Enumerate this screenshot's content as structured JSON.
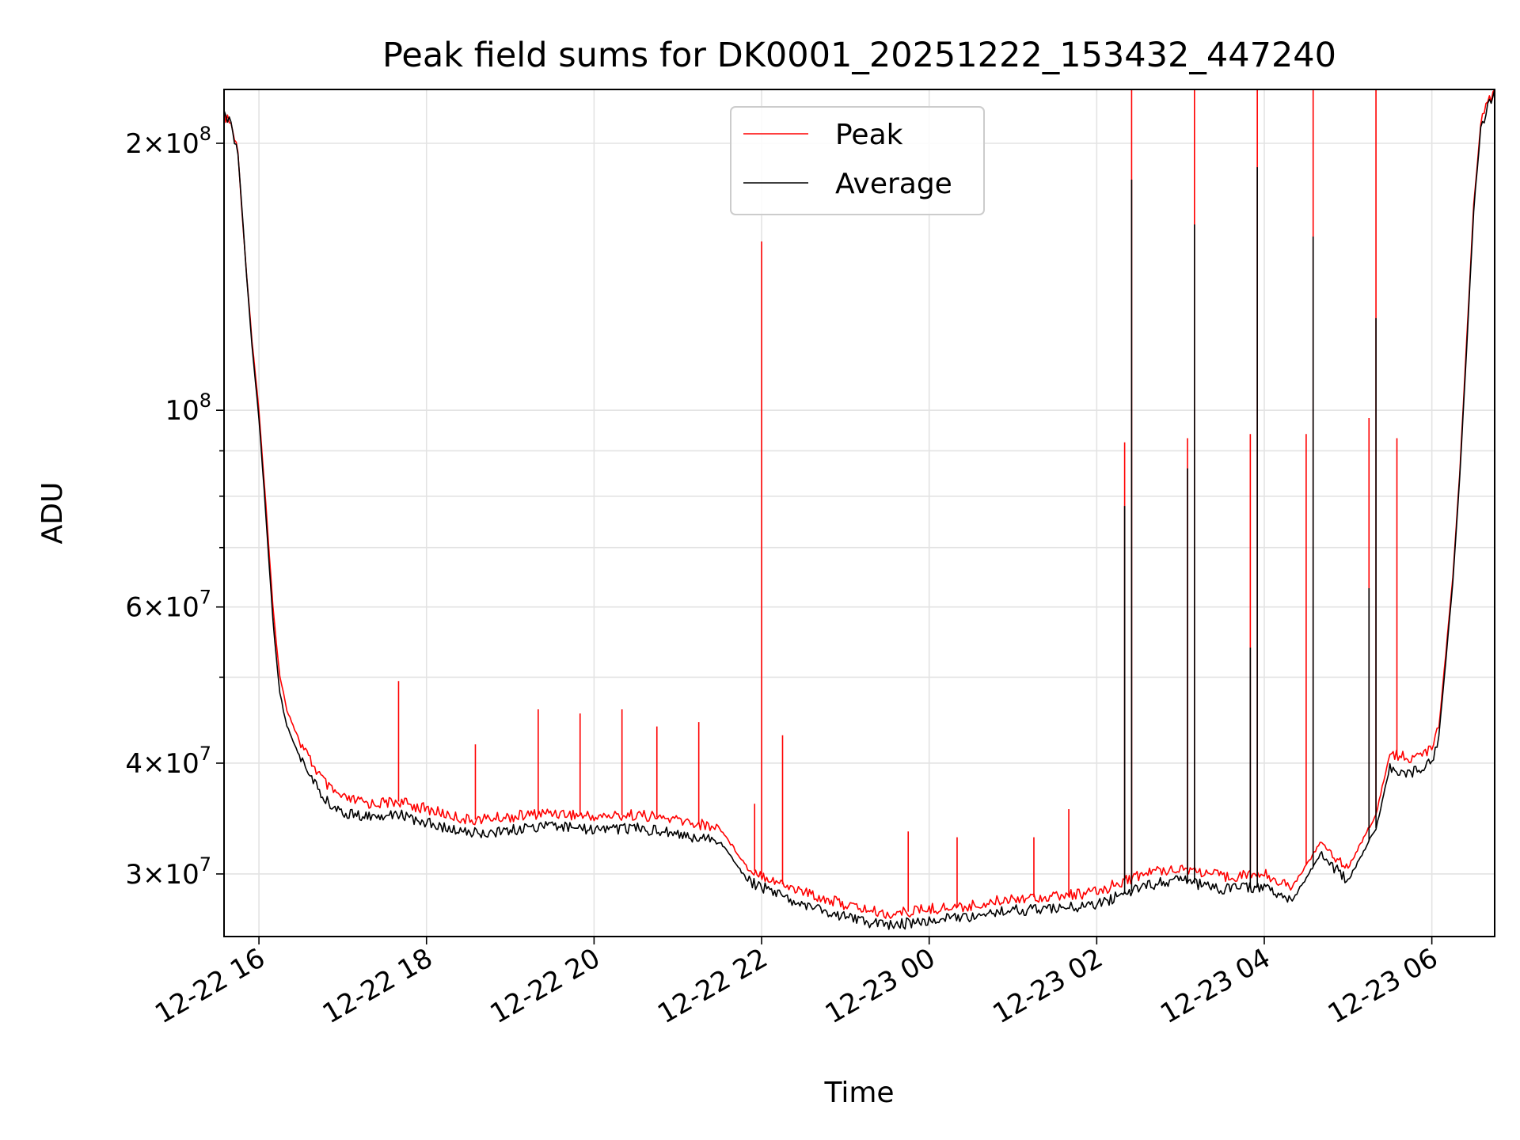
{
  "chart_data": {
    "type": "line",
    "title": "Peak field sums for DK0001_20251222_153432_447240",
    "xlabel": "Time",
    "ylabel": "ADU",
    "yscale": "log",
    "grid": true,
    "legend_position": "upper center",
    "xlim": [
      "2025-12-22 15:35",
      "2025-12-23 06:45"
    ],
    "ylim": [
      25500000,
      230000000
    ],
    "x_ticks": [
      {
        "value": "2025-12-22 16:00",
        "label": "12-22 16"
      },
      {
        "value": "2025-12-22 18:00",
        "label": "12-22 18"
      },
      {
        "value": "2025-12-22 20:00",
        "label": "12-22 20"
      },
      {
        "value": "2025-12-22 22:00",
        "label": "12-22 22"
      },
      {
        "value": "2025-12-23 00:00",
        "label": "12-23 00"
      },
      {
        "value": "2025-12-23 02:00",
        "label": "12-23 02"
      },
      {
        "value": "2025-12-23 04:00",
        "label": "12-23 04"
      },
      {
        "value": "2025-12-23 06:00",
        "label": "12-23 06"
      }
    ],
    "y_ticks_major": [
      {
        "value": 30000000,
        "mant": "3",
        "exp": "7"
      },
      {
        "value": 40000000,
        "mant": "4",
        "exp": "7"
      },
      {
        "value": 60000000,
        "mant": "6",
        "exp": "7"
      },
      {
        "value": 100000000,
        "mant": "",
        "exp": "8"
      },
      {
        "value": 200000000,
        "mant": "2",
        "exp": "8"
      }
    ],
    "y_ticks_minor": [
      50000000,
      70000000,
      80000000,
      90000000
    ],
    "series": [
      {
        "name": "Peak",
        "color": "#ff0000",
        "points": [
          [
            "2025-12-22 15:35",
            215000000
          ],
          [
            "2025-12-22 15:40",
            210000000
          ],
          [
            "2025-12-22 15:45",
            195000000
          ],
          [
            "2025-12-22 15:50",
            150000000
          ],
          [
            "2025-12-22 15:55",
            120000000
          ],
          [
            "2025-12-22 16:00",
            100000000
          ],
          [
            "2025-12-22 16:05",
            78000000
          ],
          [
            "2025-12-22 16:10",
            60000000
          ],
          [
            "2025-12-22 16:15",
            50000000
          ],
          [
            "2025-12-22 16:20",
            46000000
          ],
          [
            "2025-12-22 16:30",
            42000000
          ],
          [
            "2025-12-22 16:40",
            39500000
          ],
          [
            "2025-12-22 16:50",
            37500000
          ],
          [
            "2025-12-22 17:00",
            36500000
          ],
          [
            "2025-12-22 17:20",
            36000000
          ],
          [
            "2025-12-22 17:40",
            36200000
          ],
          [
            "2025-12-22 18:00",
            35500000
          ],
          [
            "2025-12-22 18:30",
            34500000
          ],
          [
            "2025-12-22 19:00",
            34800000
          ],
          [
            "2025-12-22 19:30",
            35200000
          ],
          [
            "2025-12-22 20:00",
            34800000
          ],
          [
            "2025-12-22 20:30",
            35000000
          ],
          [
            "2025-12-22 21:00",
            34500000
          ],
          [
            "2025-12-22 21:30",
            33800000
          ],
          [
            "2025-12-22 21:50",
            30500000
          ],
          [
            "2025-12-22 22:15",
            29200000
          ],
          [
            "2025-12-22 22:40",
            28300000
          ],
          [
            "2025-12-22 23:00",
            27700000
          ],
          [
            "2025-12-22 23:30",
            27000000
          ],
          [
            "2025-12-23 00:00",
            27400000
          ],
          [
            "2025-12-23 00:30",
            27600000
          ],
          [
            "2025-12-23 01:00",
            28200000
          ],
          [
            "2025-12-23 01:30",
            28300000
          ],
          [
            "2025-12-23 02:00",
            28600000
          ],
          [
            "2025-12-23 02:20",
            29500000
          ],
          [
            "2025-12-23 02:40",
            30200000
          ],
          [
            "2025-12-23 03:00",
            30500000
          ],
          [
            "2025-12-23 03:30",
            29800000
          ],
          [
            "2025-12-23 04:00",
            30000000
          ],
          [
            "2025-12-23 04:20",
            29000000
          ],
          [
            "2025-12-23 04:40",
            32500000
          ],
          [
            "2025-12-23 05:00",
            30500000
          ],
          [
            "2025-12-23 05:20",
            35000000
          ],
          [
            "2025-12-23 05:30",
            41000000
          ],
          [
            "2025-12-23 05:45",
            40500000
          ],
          [
            "2025-12-23 06:00",
            41500000
          ],
          [
            "2025-12-23 06:05",
            44000000
          ],
          [
            "2025-12-23 06:10",
            53000000
          ],
          [
            "2025-12-23 06:15",
            65000000
          ],
          [
            "2025-12-23 06:20",
            85000000
          ],
          [
            "2025-12-23 06:25",
            120000000
          ],
          [
            "2025-12-23 06:30",
            170000000
          ],
          [
            "2025-12-23 06:35",
            210000000
          ],
          [
            "2025-12-23 06:40",
            222000000
          ],
          [
            "2025-12-23 06:45",
            230000000
          ]
        ],
        "spikes": [
          [
            "2025-12-22 17:40",
            49500000
          ],
          [
            "2025-12-22 18:35",
            42000000
          ],
          [
            "2025-12-22 19:20",
            46000000
          ],
          [
            "2025-12-22 19:50",
            45500000
          ],
          [
            "2025-12-22 20:20",
            46000000
          ],
          [
            "2025-12-22 20:45",
            44000000
          ],
          [
            "2025-12-22 21:15",
            44500000
          ],
          [
            "2025-12-22 21:55",
            36000000
          ],
          [
            "2025-12-22 22:00",
            155000000
          ],
          [
            "2025-12-22 22:15",
            43000000
          ],
          [
            "2025-12-22 23:45",
            33500000
          ],
          [
            "2025-12-23 00:20",
            33000000
          ],
          [
            "2025-12-23 01:15",
            33000000
          ],
          [
            "2025-12-23 01:40",
            35500000
          ],
          [
            "2025-12-23 02:20",
            92000000
          ],
          [
            "2025-12-23 02:25",
            240000000
          ],
          [
            "2025-12-23 03:05",
            93000000
          ],
          [
            "2025-12-23 03:10",
            240000000
          ],
          [
            "2025-12-23 03:50",
            94000000
          ],
          [
            "2025-12-23 03:55",
            240000000
          ],
          [
            "2025-12-23 04:30",
            94000000
          ],
          [
            "2025-12-23 04:35",
            240000000
          ],
          [
            "2025-12-23 05:15",
            98000000
          ],
          [
            "2025-12-23 05:20",
            240000000
          ],
          [
            "2025-12-23 05:35",
            93000000
          ]
        ]
      },
      {
        "name": "Average",
        "color": "#000000",
        "points": [
          [
            "2025-12-22 15:35",
            215000000
          ],
          [
            "2025-12-22 15:40",
            210000000
          ],
          [
            "2025-12-22 15:45",
            195000000
          ],
          [
            "2025-12-22 15:50",
            150000000
          ],
          [
            "2025-12-22 15:55",
            118000000
          ],
          [
            "2025-12-22 16:00",
            98000000
          ],
          [
            "2025-12-22 16:05",
            76000000
          ],
          [
            "2025-12-22 16:10",
            58000000
          ],
          [
            "2025-12-22 16:15",
            48000000
          ],
          [
            "2025-12-22 16:20",
            44000000
          ],
          [
            "2025-12-22 16:30",
            40500000
          ],
          [
            "2025-12-22 16:40",
            38000000
          ],
          [
            "2025-12-22 16:50",
            36000000
          ],
          [
            "2025-12-22 17:00",
            35200000
          ],
          [
            "2025-12-22 17:20",
            34800000
          ],
          [
            "2025-12-22 17:40",
            35000000
          ],
          [
            "2025-12-22 18:00",
            34300000
          ],
          [
            "2025-12-22 18:30",
            33300000
          ],
          [
            "2025-12-22 19:00",
            33600000
          ],
          [
            "2025-12-22 19:30",
            34000000
          ],
          [
            "2025-12-22 20:00",
            33600000
          ],
          [
            "2025-12-22 20:30",
            33800000
          ],
          [
            "2025-12-22 21:00",
            33300000
          ],
          [
            "2025-12-22 21:30",
            32600000
          ],
          [
            "2025-12-22 21:50",
            29500000
          ],
          [
            "2025-12-22 22:15",
            28300000
          ],
          [
            "2025-12-22 22:40",
            27400000
          ],
          [
            "2025-12-22 23:00",
            26800000
          ],
          [
            "2025-12-22 23:30",
            26200000
          ],
          [
            "2025-12-23 00:00",
            26600000
          ],
          [
            "2025-12-23 00:30",
            26800000
          ],
          [
            "2025-12-23 01:00",
            27300000
          ],
          [
            "2025-12-23 01:30",
            27400000
          ],
          [
            "2025-12-23 02:00",
            27700000
          ],
          [
            "2025-12-23 02:20",
            28500000
          ],
          [
            "2025-12-23 02:40",
            29200000
          ],
          [
            "2025-12-23 03:00",
            29500000
          ],
          [
            "2025-12-23 03:30",
            28800000
          ],
          [
            "2025-12-23 04:00",
            29000000
          ],
          [
            "2025-12-23 04:20",
            28000000
          ],
          [
            "2025-12-23 04:40",
            31500000
          ],
          [
            "2025-12-23 05:00",
            29500000
          ],
          [
            "2025-12-23 05:20",
            33800000
          ],
          [
            "2025-12-23 05:30",
            39500000
          ],
          [
            "2025-12-23 05:45",
            39000000
          ],
          [
            "2025-12-23 06:00",
            40000000
          ],
          [
            "2025-12-23 06:05",
            43000000
          ],
          [
            "2025-12-23 06:10",
            52000000
          ],
          [
            "2025-12-23 06:15",
            64000000
          ],
          [
            "2025-12-23 06:20",
            84000000
          ],
          [
            "2025-12-23 06:25",
            118000000
          ],
          [
            "2025-12-23 06:30",
            168000000
          ],
          [
            "2025-12-23 06:35",
            208000000
          ],
          [
            "2025-12-23 06:40",
            220000000
          ],
          [
            "2025-12-23 06:45",
            230000000
          ]
        ],
        "spikes": [
          [
            "2025-12-23 02:20",
            78000000
          ],
          [
            "2025-12-23 02:25",
            182000000
          ],
          [
            "2025-12-23 03:05",
            86000000
          ],
          [
            "2025-12-23 03:10",
            162000000
          ],
          [
            "2025-12-23 03:50",
            54000000
          ],
          [
            "2025-12-23 03:55",
            188000000
          ],
          [
            "2025-12-23 04:35",
            157000000
          ],
          [
            "2025-12-23 05:15",
            63000000
          ],
          [
            "2025-12-23 05:20",
            127000000
          ]
        ]
      }
    ]
  }
}
